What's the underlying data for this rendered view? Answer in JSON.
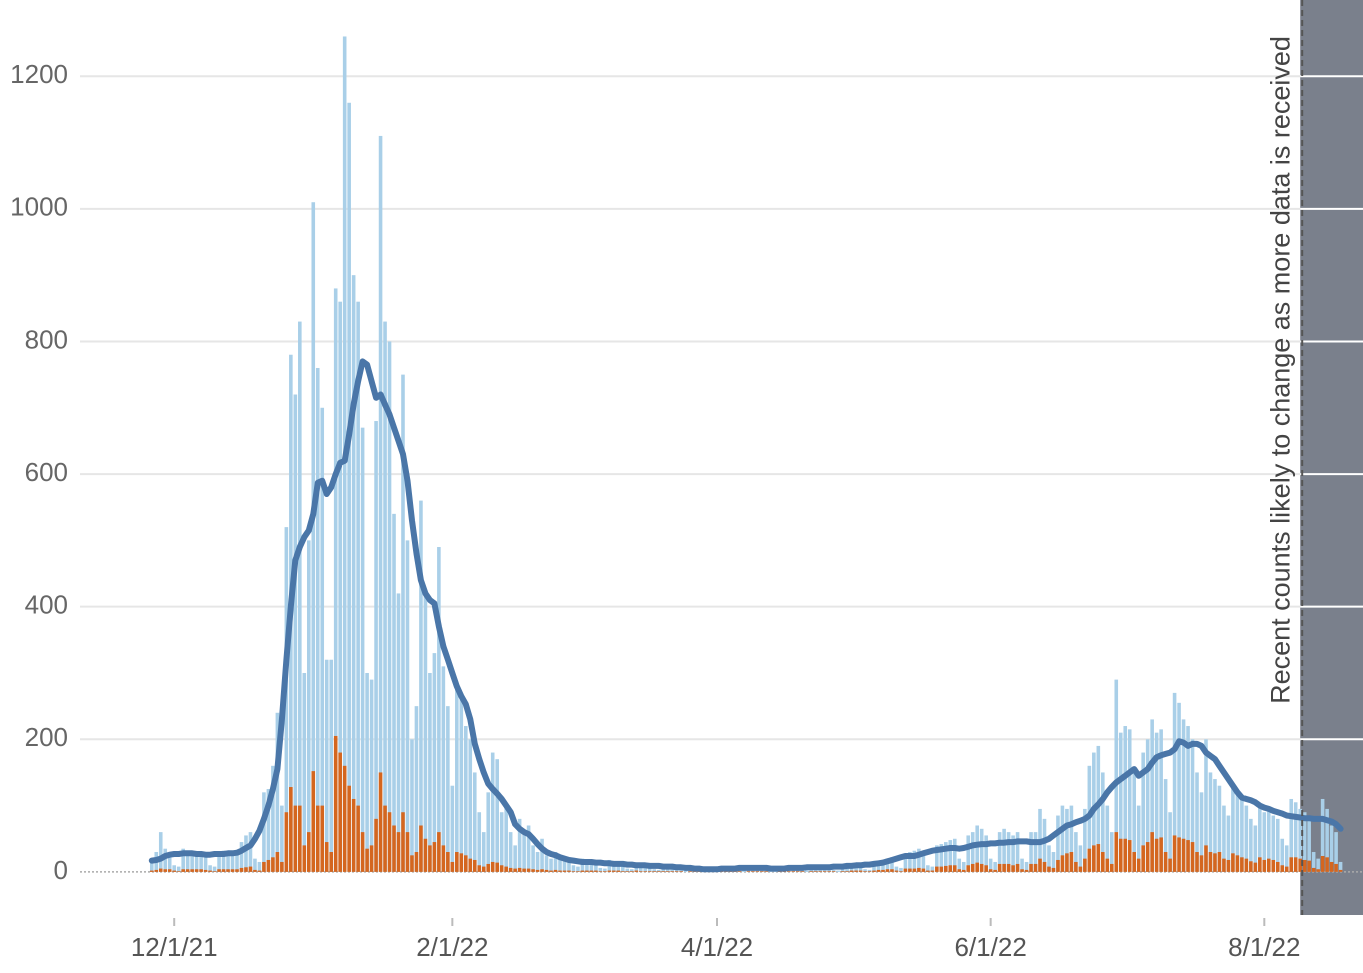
{
  "chart_data": {
    "type": "bar-line",
    "x": [
      -5,
      -4,
      -3,
      -2,
      -1,
      0,
      1,
      2,
      3,
      4,
      5,
      6,
      7,
      8,
      9,
      10,
      11,
      12,
      13,
      14,
      15,
      16,
      17,
      18,
      19,
      20,
      21,
      22,
      23,
      24,
      25,
      26,
      27,
      28,
      29,
      30,
      31,
      32,
      33,
      34,
      35,
      36,
      37,
      38,
      39,
      40,
      41,
      42,
      43,
      44,
      45,
      46,
      47,
      48,
      49,
      50,
      51,
      52,
      53,
      54,
      55,
      56,
      57,
      58,
      59,
      60,
      61,
      62,
      63,
      64,
      65,
      66,
      67,
      68,
      69,
      70,
      71,
      72,
      73,
      74,
      75,
      76,
      77,
      78,
      79,
      80,
      81,
      82,
      83,
      84,
      85,
      86,
      87,
      88,
      89,
      90,
      91,
      92,
      93,
      94,
      95,
      96,
      97,
      98,
      99,
      100,
      101,
      102,
      103,
      104,
      105,
      106,
      107,
      108,
      109,
      110,
      111,
      112,
      113,
      114,
      115,
      116,
      117,
      118,
      119,
      120,
      121,
      122,
      123,
      124,
      125,
      126,
      127,
      128,
      129,
      130,
      131,
      132,
      133,
      134,
      135,
      136,
      137,
      138,
      139,
      140,
      141,
      142,
      143,
      144,
      145,
      146,
      147,
      148,
      149,
      150,
      151,
      152,
      153,
      154,
      155,
      156,
      157,
      158,
      159,
      160,
      161,
      162,
      163,
      164,
      165,
      166,
      167,
      168,
      169,
      170,
      171,
      172,
      173,
      174,
      175,
      176,
      177,
      178,
      179,
      180,
      181,
      182,
      183,
      184,
      185,
      186,
      187,
      188,
      189,
      190,
      191,
      192,
      193,
      194,
      195,
      196,
      197,
      198,
      199,
      200,
      201,
      202,
      203,
      204,
      205,
      206,
      207,
      208,
      209,
      210,
      211,
      212,
      213,
      214,
      215,
      216,
      217,
      218,
      219,
      220,
      221,
      222,
      223,
      224,
      225,
      226,
      227,
      228,
      229,
      230,
      231,
      232,
      233,
      234,
      235,
      236,
      237,
      238,
      239,
      240,
      241,
      242,
      243,
      244,
      245,
      246,
      247,
      248,
      249,
      250,
      251,
      252,
      253,
      254,
      255,
      256,
      257,
      258,
      259,
      260
    ],
    "series": [
      {
        "kind": "bar",
        "color": "#a9cfe8",
        "values": [
          15,
          30,
          60,
          35,
          30,
          10,
          8,
          35,
          30,
          32,
          30,
          28,
          25,
          10,
          8,
          30,
          32,
          30,
          28,
          30,
          45,
          55,
          60,
          20,
          15,
          120,
          125,
          160,
          240,
          100,
          520,
          780,
          720,
          830,
          300,
          500,
          1010,
          760,
          700,
          320,
          320,
          880,
          860,
          1260,
          1160,
          900,
          860,
          670,
          300,
          290,
          680,
          1110,
          830,
          800,
          540,
          420,
          750,
          500,
          200,
          250,
          560,
          420,
          300,
          330,
          490,
          310,
          250,
          130,
          280,
          270,
          220,
          200,
          150,
          90,
          60,
          120,
          180,
          170,
          90,
          100,
          60,
          40,
          80,
          60,
          70,
          40,
          30,
          50,
          25,
          20,
          30,
          25,
          20,
          22,
          10,
          8,
          20,
          18,
          16,
          15,
          6,
          5,
          18,
          16,
          14,
          12,
          5,
          4,
          14,
          12,
          12,
          10,
          4,
          3,
          10,
          10,
          10,
          9,
          3,
          2,
          8,
          7,
          6,
          5,
          2,
          2,
          5,
          5,
          6,
          7,
          6,
          3,
          2,
          8,
          8,
          7,
          8,
          7,
          2,
          2,
          7,
          7,
          8,
          8,
          7,
          3,
          2,
          9,
          9,
          10,
          9,
          9,
          3,
          2,
          10,
          11,
          12,
          12,
          12,
          4,
          3,
          14,
          16,
          18,
          20,
          22,
          8,
          6,
          28,
          30,
          32,
          35,
          30,
          10,
          8,
          40,
          42,
          45,
          48,
          50,
          20,
          15,
          55,
          60,
          70,
          65,
          55,
          20,
          15,
          60,
          65,
          60,
          55,
          60,
          20,
          15,
          60,
          60,
          95,
          80,
          40,
          30,
          85,
          100,
          95,
          100,
          60,
          40,
          95,
          160,
          180,
          190,
          150,
          100,
          60,
          290,
          210,
          220,
          215,
          150,
          100,
          180,
          200,
          230,
          210,
          215,
          140,
          90,
          270,
          255,
          230,
          220,
          200,
          150,
          120,
          200,
          150,
          140,
          130,
          100,
          85,
          130,
          120,
          110,
          100,
          80,
          70,
          100,
          90,
          95,
          85,
          80,
          50,
          40,
          110,
          105,
          95,
          90,
          85,
          30,
          20,
          110,
          95,
          70,
          60,
          15
        ]
      },
      {
        "kind": "bar",
        "color": "#d4661f",
        "values": [
          2,
          3,
          5,
          4,
          4,
          2,
          1,
          4,
          4,
          4,
          4,
          4,
          3,
          2,
          1,
          4,
          4,
          4,
          4,
          4,
          6,
          7,
          8,
          3,
          2,
          15,
          18,
          22,
          30,
          15,
          90,
          128,
          100,
          100,
          40,
          60,
          152,
          100,
          100,
          45,
          30,
          205,
          180,
          160,
          130,
          110,
          100,
          60,
          35,
          40,
          80,
          150,
          100,
          90,
          70,
          60,
          90,
          60,
          25,
          30,
          70,
          50,
          40,
          45,
          60,
          40,
          30,
          15,
          30,
          28,
          25,
          20,
          18,
          10,
          8,
          12,
          15,
          14,
          10,
          8,
          6,
          5,
          6,
          5,
          5,
          4,
          3,
          4,
          3,
          2,
          3,
          2,
          2,
          2,
          1,
          1,
          2,
          2,
          2,
          2,
          1,
          1,
          2,
          2,
          2,
          1,
          1,
          1,
          2,
          1,
          1,
          1,
          1,
          1,
          1,
          1,
          1,
          1,
          1,
          0,
          1,
          1,
          1,
          1,
          0,
          0,
          1,
          1,
          1,
          1,
          1,
          1,
          0,
          1,
          1,
          1,
          1,
          1,
          0,
          0,
          1,
          1,
          1,
          1,
          1,
          1,
          0,
          1,
          1,
          1,
          1,
          1,
          1,
          0,
          1,
          1,
          2,
          2,
          2,
          1,
          1,
          2,
          3,
          3,
          4,
          4,
          2,
          1,
          5,
          5,
          5,
          6,
          5,
          2,
          2,
          8,
          8,
          9,
          10,
          10,
          4,
          3,
          10,
          12,
          14,
          12,
          10,
          4,
          3,
          12,
          12,
          12,
          10,
          12,
          4,
          3,
          12,
          12,
          20,
          15,
          8,
          6,
          18,
          25,
          28,
          30,
          15,
          8,
          20,
          35,
          40,
          42,
          30,
          20,
          12,
          60,
          50,
          50,
          48,
          30,
          20,
          40,
          45,
          60,
          50,
          52,
          30,
          20,
          55,
          52,
          50,
          48,
          45,
          30,
          25,
          40,
          30,
          28,
          30,
          20,
          18,
          28,
          25,
          22,
          20,
          16,
          14,
          22,
          18,
          20,
          18,
          15,
          10,
          8,
          22,
          22,
          20,
          18,
          17,
          6,
          4,
          24,
          22,
          15,
          12,
          3
        ]
      },
      {
        "kind": "line",
        "color": "#4a76a8",
        "values": [
          17,
          18,
          20,
          24,
          26,
          27,
          27,
          28,
          28,
          28,
          27,
          27,
          26,
          26,
          27,
          27,
          27,
          28,
          28,
          29,
          32,
          36,
          40,
          50,
          62,
          80,
          100,
          125,
          155,
          230,
          320,
          400,
          470,
          490,
          505,
          515,
          540,
          587,
          590,
          570,
          580,
          600,
          617,
          620,
          660,
          705,
          740,
          770,
          765,
          740,
          715,
          720,
          705,
          690,
          670,
          650,
          630,
          590,
          530,
          480,
          440,
          420,
          410,
          405,
          370,
          340,
          320,
          300,
          280,
          265,
          253,
          230,
          193,
          170,
          150,
          133,
          125,
          118,
          110,
          100,
          90,
          72,
          65,
          60,
          57,
          50,
          42,
          35,
          30,
          27,
          25,
          22,
          20,
          18,
          17,
          16,
          15,
          15,
          15,
          14,
          14,
          13,
          13,
          12,
          12,
          12,
          11,
          11,
          10,
          10,
          10,
          9,
          9,
          9,
          8,
          8,
          8,
          7,
          7,
          6,
          6,
          5,
          5,
          4,
          4,
          4,
          4,
          5,
          5,
          5,
          5,
          6,
          6,
          6,
          6,
          6,
          6,
          6,
          5,
          5,
          5,
          5,
          6,
          6,
          6,
          6,
          7,
          7,
          7,
          7,
          7,
          7,
          8,
          8,
          8,
          9,
          9,
          10,
          10,
          11,
          11,
          12,
          13,
          14,
          16,
          18,
          20,
          22,
          24,
          24,
          24,
          26,
          28,
          30,
          32,
          33,
          34,
          35,
          36,
          36,
          35,
          36,
          38,
          40,
          41,
          42,
          42,
          43,
          43,
          44,
          44,
          45,
          45,
          46,
          46,
          46,
          45,
          45,
          45,
          47,
          50,
          55,
          60,
          65,
          70,
          72,
          75,
          77,
          80,
          85,
          95,
          102,
          110,
          120,
          128,
          135,
          140,
          145,
          150,
          155,
          145,
          150,
          155,
          165,
          173,
          176,
          178,
          180,
          185,
          197,
          195,
          190,
          193,
          193,
          190,
          180,
          175,
          170,
          160,
          150,
          140,
          130,
          120,
          112,
          110,
          108,
          105,
          100,
          97,
          95,
          92,
          90,
          88,
          85,
          84,
          83,
          82,
          81,
          81,
          80,
          80,
          80,
          78,
          76,
          72,
          65
        ]
      }
    ],
    "xlim": [
      -21,
      265
    ],
    "xticks": [
      {
        "value": 0,
        "label": "12/1/21"
      },
      {
        "value": 62,
        "label": "2/1/22"
      },
      {
        "value": 121,
        "label": "4/1/22"
      },
      {
        "value": 182,
        "label": "6/1/22"
      },
      {
        "value": 243,
        "label": "8/1/22"
      }
    ],
    "ylim": [
      -65,
      1315
    ],
    "yticks": [
      0,
      200,
      400,
      600,
      800,
      1000,
      1200
    ],
    "grid": true,
    "annotation": {
      "text": "Recent counts likely to change as more data is received",
      "x": 251,
      "color": "#7a808c"
    }
  }
}
